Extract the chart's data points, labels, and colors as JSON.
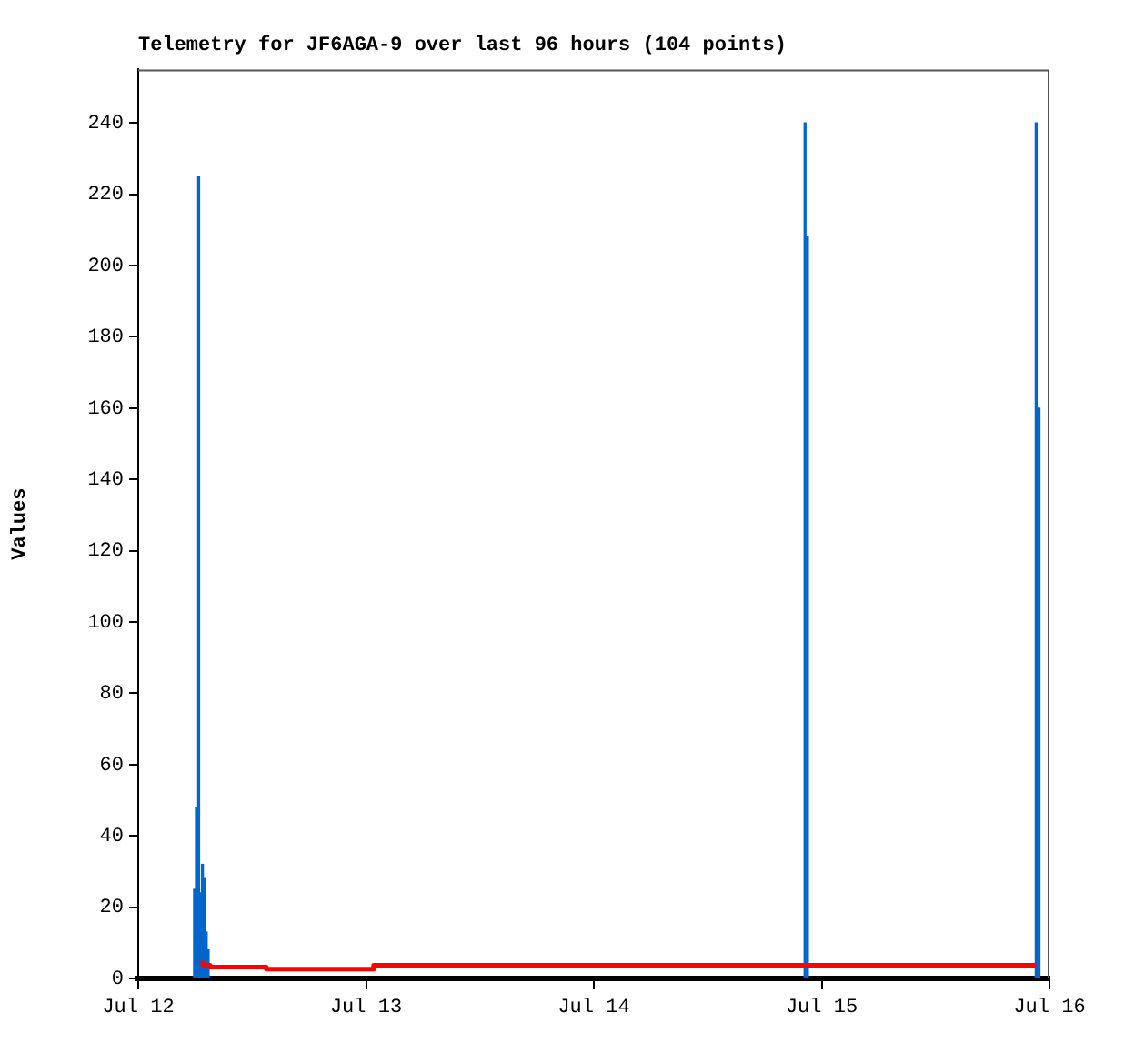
{
  "chart_data": {
    "type": "step",
    "title": "Telemetry for JF6AGA-9 over last 96 hours (104 points)",
    "ylabel": "Values",
    "xlim": [
      "--07-12",
      "--07-16"
    ],
    "xticks": [
      {
        "value": "--07-12",
        "label": "Jul 12"
      },
      {
        "value": "--07-13",
        "label": "Jul 13"
      },
      {
        "value": "--07-14",
        "label": "Jul 14"
      },
      {
        "value": "--07-15",
        "label": "Jul 15"
      },
      {
        "value": "--07-16",
        "label": "Jul 16"
      }
    ],
    "ylim": [
      0,
      255
    ],
    "yticks": [
      0,
      20,
      40,
      60,
      80,
      100,
      120,
      140,
      160,
      180,
      200,
      220,
      240
    ],
    "series": [
      {
        "type": "bar",
        "color": "#0066cc",
        "x": [
          "--07-12T05:56",
          "--07-12T06:08",
          "--07-12T06:22",
          "--07-12T06:34",
          "--07-12T06:46",
          "--07-12T06:58",
          "--07-12T07:10",
          "--07-12T07:22",
          "--07-14T22:15",
          "--07-14T22:30",
          "--07-15T22:36",
          "--07-15T22:54"
        ],
        "values": [
          25,
          48,
          225,
          24,
          32,
          28,
          13,
          8,
          240,
          208,
          240,
          160
        ]
      },
      {
        "color": "#ff0000",
        "x": [
          "--07-12T06:48",
          "--07-12T07:34",
          "--07-12T13:30",
          "--07-13T00:48",
          "--07-13T06:24",
          "--07-15T22:36"
        ],
        "values": [
          5,
          3.7,
          3.2,
          2.6,
          3.7,
          3.7
        ]
      }
    ]
  }
}
